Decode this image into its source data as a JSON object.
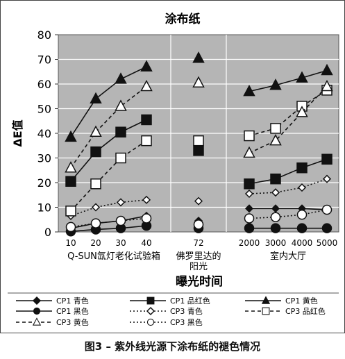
{
  "chart_data": {
    "type": "line",
    "title": "涂布纸",
    "ylabel": "ΔE值",
    "xlabel": "曝光时间",
    "ylim": [
      0,
      80
    ],
    "yticks": [
      0,
      10,
      20,
      30,
      40,
      50,
      60,
      70,
      80
    ],
    "grid": true,
    "legend_position": "bottom",
    "groups": [
      {
        "name": "Q-SUN氙灯老化试验箱",
        "ticks": [
          "10",
          "20",
          "30",
          "40"
        ]
      },
      {
        "name": "佛罗里达的\n阳光",
        "ticks": [
          "72"
        ]
      },
      {
        "name": "室内大厅",
        "ticks": [
          "2000",
          "3000",
          "4000",
          "5000"
        ]
      }
    ],
    "categories": [
      "10",
      "20",
      "30",
      "40",
      "72",
      "2000",
      "3000",
      "4000",
      "5000"
    ],
    "series": [
      {
        "name": "CP1 青色",
        "color": "#111111",
        "marker": "diamond",
        "fill": "solid",
        "dash": "solid",
        "values": [
          1.5,
          3.5,
          4.5,
          6.5,
          4.5,
          9.5,
          9.5,
          9.5,
          9
        ]
      },
      {
        "name": "CP1 品红色",
        "color": "#111111",
        "marker": "square",
        "fill": "solid",
        "dash": "solid",
        "values": [
          20.5,
          32.5,
          40.5,
          45.5,
          33,
          19.5,
          21.5,
          26,
          29.5
        ]
      },
      {
        "name": "CP1 黄色",
        "color": "#111111",
        "marker": "triangle",
        "fill": "solid",
        "dash": "solid",
        "values": [
          38.5,
          54,
          62,
          67,
          70.5,
          57,
          59.5,
          62.5,
          65.5
        ]
      },
      {
        "name": "CP1 黑色",
        "color": "#111111",
        "marker": "circle",
        "fill": "solid",
        "dash": "solid",
        "values": [
          0.2,
          1,
          1.5,
          2.5,
          1.5,
          1.5,
          1.5,
          1.5,
          1.5
        ]
      },
      {
        "name": "CP3 青色",
        "color": "#111111",
        "marker": "diamond",
        "fill": "open",
        "dash": "dotted",
        "values": [
          6.5,
          10,
          12,
          13,
          12.5,
          15.5,
          16,
          18,
          21.5
        ]
      },
      {
        "name": "CP3 品红色",
        "color": "#111111",
        "marker": "square",
        "fill": "open",
        "dash": "dashed",
        "values": [
          8.5,
          19.5,
          30,
          37,
          37,
          39,
          42,
          51,
          57.5
        ]
      },
      {
        "name": "CP3 黄色",
        "color": "#111111",
        "marker": "triangle",
        "fill": "open",
        "dash": "dashed",
        "values": [
          26,
          40.5,
          51,
          59,
          60.5,
          32,
          37,
          48.5,
          59
        ]
      },
      {
        "name": "CP3 黑色",
        "color": "#111111",
        "marker": "circle",
        "fill": "open",
        "dash": "dotted",
        "values": [
          2,
          3.5,
          4.5,
          5.5,
          3,
          5.5,
          6,
          7,
          9
        ]
      }
    ],
    "colors": {
      "plot_background": "#b5b5b5",
      "grid": "#ffffff"
    }
  },
  "caption": "图3  –  紫外线光源下涂布纸的褪色情况"
}
